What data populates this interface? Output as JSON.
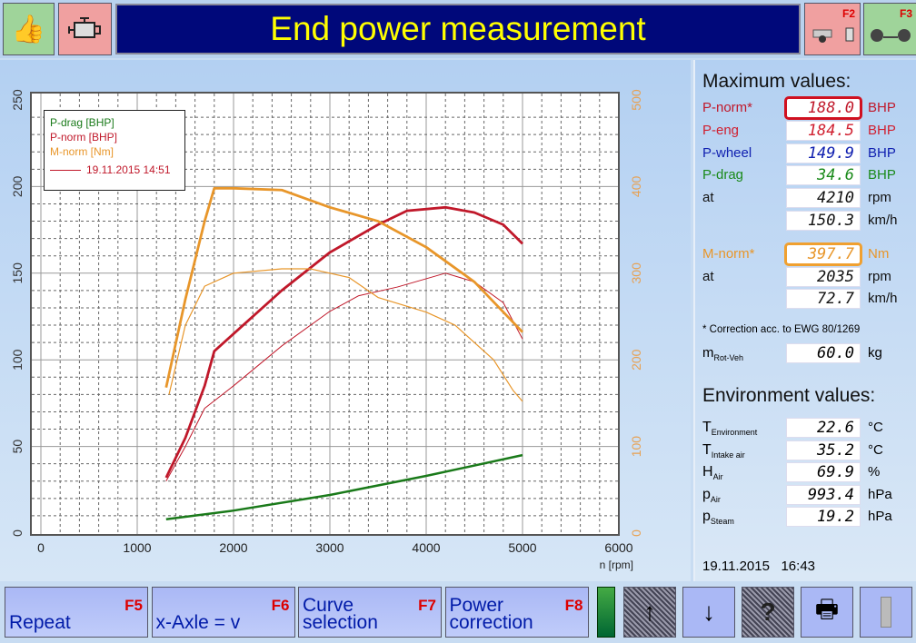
{
  "header": {
    "title": "End power measurement",
    "f2": "F2",
    "f3": "F3"
  },
  "legend": {
    "items": [
      "P-drag [BHP]",
      "P-norm [BHP]",
      "M-norm [Nm]"
    ],
    "date_entry": "19.11.2015 14:51"
  },
  "chart_data": {
    "type": "line",
    "xlabel": "n [rpm]",
    "xlim": [
      0,
      6000
    ],
    "ylim_left": [
      0,
      250
    ],
    "ylim_right": [
      0,
      500
    ],
    "x_ticks": [
      "0",
      "1000",
      "2000",
      "3000",
      "4000",
      "5000",
      "6000"
    ],
    "y_ticks_left": [
      "0",
      "50",
      "100",
      "150",
      "200",
      "250"
    ],
    "y_ticks_right": [
      "0",
      "100",
      "200",
      "300",
      "400",
      "500"
    ],
    "grid": true,
    "legend_position": "top-left",
    "colors": {
      "drag": "#1a7a1a",
      "norm": "#c0182a",
      "torque": "#e8962a"
    },
    "series": [
      {
        "name": "P-drag [BHP]",
        "axis": "left",
        "color": "#1a7a1a",
        "width": 2.5,
        "x": [
          1300,
          2000,
          3000,
          4000,
          5000
        ],
        "y": [
          8,
          13,
          22,
          33,
          45
        ]
      },
      {
        "name": "P-norm [BHP]",
        "axis": "left",
        "color": "#c0182a",
        "width": 2.8,
        "x": [
          1300,
          1500,
          1700,
          1800,
          2000,
          2500,
          3000,
          3500,
          3800,
          4200,
          4500,
          4800,
          5000
        ],
        "y": [
          32,
          55,
          85,
          105,
          115,
          140,
          162,
          178,
          186,
          188,
          185,
          178,
          167
        ]
      },
      {
        "axis": "left",
        "color": "#c0182a",
        "width": 1,
        "x": [
          1300,
          1500,
          1700,
          2000,
          2500,
          3000,
          3300,
          3700,
          4200,
          4500,
          4800,
          5000
        ],
        "y": [
          30,
          50,
          72,
          85,
          108,
          128,
          137,
          142,
          150,
          145,
          133,
          112
        ]
      },
      {
        "name": "M-norm [Nm]",
        "axis": "right",
        "color": "#e8962a",
        "width": 2.8,
        "x": [
          1300,
          1500,
          1700,
          1800,
          2000,
          2500,
          3000,
          3500,
          4000,
          4500,
          5000
        ],
        "y": [
          168,
          270,
          360,
          398,
          398,
          396,
          376,
          360,
          330,
          290,
          232
        ]
      },
      {
        "axis": "right",
        "color": "#e8962a",
        "width": 1.2,
        "x": [
          1330,
          1500,
          1700,
          2000,
          2500,
          2800,
          3200,
          3500,
          4000,
          4300,
          4700,
          4900,
          5000
        ],
        "y": [
          160,
          240,
          285,
          300,
          305,
          305,
          295,
          272,
          255,
          240,
          200,
          165,
          152
        ]
      }
    ]
  },
  "max": {
    "title": "Maximum values:",
    "rows": [
      {
        "label": "P-norm*",
        "value": "188.0",
        "unit": "BHP",
        "color": "#c0182a"
      },
      {
        "label": "P-eng",
        "value": "184.5",
        "unit": "BHP",
        "color": "#d02030"
      },
      {
        "label": "P-wheel",
        "value": "149.9",
        "unit": "BHP",
        "color": "#1020b0"
      },
      {
        "label": "P-drag",
        "value": "34.6",
        "unit": "BHP",
        "color": "#1a8a1a"
      },
      {
        "label": "at",
        "value": "4210",
        "unit": "rpm",
        "color": "#111"
      },
      {
        "label": "",
        "value": "150.3",
        "unit": "km/h",
        "color": "#111"
      },
      {
        "label": "M-norm*",
        "value": "397.7",
        "unit": "Nm",
        "color": "#e8962a"
      },
      {
        "label": "at",
        "value": "2035",
        "unit": "rpm",
        "color": "#111"
      },
      {
        "label": "",
        "value": "72.7",
        "unit": "km/h",
        "color": "#111"
      }
    ],
    "note": "* Correction acc. to EWG 80/1269",
    "mass": {
      "label": "m",
      "sub": "Rot-Veh",
      "value": "60.0",
      "unit": "kg"
    }
  },
  "env": {
    "title": "Environment values:",
    "rows": [
      {
        "label": "T",
        "sub": "Environment",
        "value": "22.6",
        "unit": "°C"
      },
      {
        "label": "T",
        "sub": "Intake air",
        "value": "35.2",
        "unit": "°C"
      },
      {
        "label": "H",
        "sub": "Air",
        "value": "69.9",
        "unit": "%"
      },
      {
        "label": "p",
        "sub": "Air",
        "value": "993.4",
        "unit": "hPa"
      },
      {
        "label": "p",
        "sub": "Steam",
        "value": "19.2",
        "unit": "hPa"
      }
    ]
  },
  "datetime": "19.11.2015   16:43",
  "footer": {
    "buttons": [
      {
        "label": "Repeat",
        "key": "F5"
      },
      {
        "label": "x-Axle = v",
        "key": "F6"
      },
      {
        "label": "Curve selection",
        "key": "F7"
      },
      {
        "label": "Power correction",
        "key": "F8"
      }
    ]
  }
}
